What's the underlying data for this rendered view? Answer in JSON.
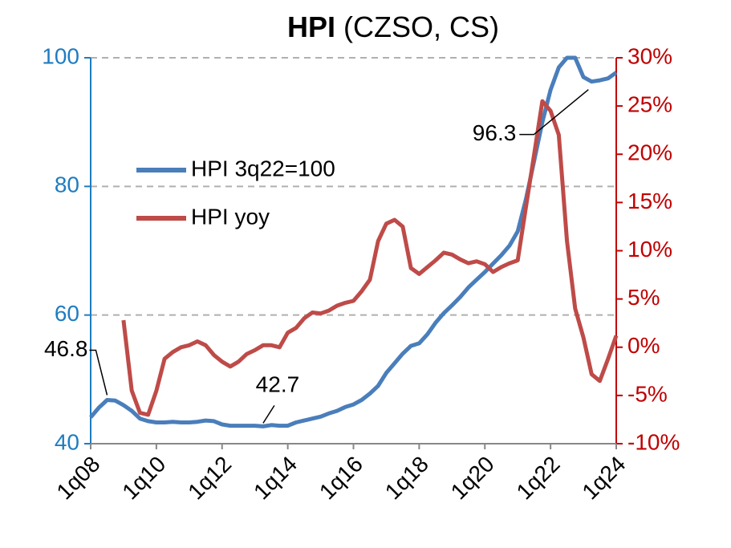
{
  "chart_data": {
    "type": "line",
    "title": "HPI",
    "subtitle": "(CZSO, CS)",
    "categories": [
      "1q08",
      null,
      null,
      null,
      null,
      null,
      null,
      null,
      "1q10",
      null,
      null,
      null,
      null,
      null,
      null,
      null,
      "1q12",
      null,
      null,
      null,
      null,
      null,
      null,
      null,
      "1q14",
      null,
      null,
      null,
      null,
      null,
      null,
      null,
      "1q16",
      null,
      null,
      null,
      null,
      null,
      null,
      null,
      "1q18",
      null,
      null,
      null,
      null,
      null,
      null,
      null,
      "1q20",
      null,
      null,
      null,
      null,
      null,
      null,
      null,
      "1q22",
      null,
      null,
      null,
      null,
      null,
      null,
      null,
      "1q24"
    ],
    "series": [
      {
        "name": "HPI 3q22=100",
        "color": "#4a7ebb",
        "axis": "y",
        "values": [
          44.1,
          45.6,
          46.8,
          46.7,
          46.0,
          45.1,
          43.9,
          43.5,
          43.3,
          43.3,
          43.4,
          43.3,
          43.3,
          43.4,
          43.6,
          43.5,
          43.0,
          42.8,
          42.8,
          42.8,
          42.8,
          42.7,
          42.9,
          42.8,
          42.8,
          43.3,
          43.6,
          43.9,
          44.2,
          44.7,
          45.1,
          45.7,
          46.1,
          46.8,
          47.8,
          49.0,
          51.0,
          52.5,
          54.0,
          55.2,
          55.6,
          57.0,
          58.8,
          60.3,
          61.5,
          62.8,
          64.3,
          65.5,
          66.7,
          68.0,
          69.3,
          70.8,
          73.0,
          78.0,
          84.0,
          90.0,
          95.0,
          98.5,
          100,
          100,
          97.0,
          96.3,
          96.5,
          96.8,
          97.7
        ]
      },
      {
        "name": "HPI yoy",
        "color": "#be4b48",
        "axis": "y2",
        "values": [
          null,
          null,
          null,
          null,
          2.8,
          -4.5,
          -6.8,
          -7.0,
          -4.5,
          -1.2,
          -0.5,
          0,
          0.2,
          0.6,
          0.2,
          -0.8,
          -1.5,
          -2.0,
          -1.5,
          -0.7,
          -0.3,
          0.2,
          0.2,
          0,
          1.5,
          2.0,
          3.0,
          3.6,
          3.5,
          3.8,
          4.3,
          4.6,
          4.8,
          5.8,
          7.0,
          11.0,
          12.8,
          13.2,
          12.5,
          8.2,
          7.6,
          8.3,
          9.0,
          9.8,
          9.6,
          9.1,
          8.7,
          8.9,
          8.6,
          7.8,
          8.3,
          8.7,
          9.0,
          14.5,
          20.0,
          25.5,
          24.5,
          22.0,
          11.0,
          4.0,
          1.0,
          -2.8,
          -3.5,
          -1.2,
          1.2
        ]
      }
    ],
    "ylim": [
      40,
      100
    ],
    "yticks": [
      40,
      60,
      80,
      100
    ],
    "y2lim": [
      -10,
      30
    ],
    "y2ticks": [
      {
        "value": -10,
        "label": "-10%"
      },
      {
        "value": -5,
        "label": "-5%"
      },
      {
        "value": 0,
        "label": "0%"
      },
      {
        "value": 5,
        "label": "5%"
      },
      {
        "value": 10,
        "label": "10%"
      },
      {
        "value": 15,
        "label": "15%"
      },
      {
        "value": 20,
        "label": "20%"
      },
      {
        "value": 25,
        "label": "25%"
      },
      {
        "value": 30,
        "label": "30%"
      }
    ],
    "annotations": [
      46.8,
      42.7,
      96.3
    ],
    "grid": true,
    "legend": "left"
  }
}
